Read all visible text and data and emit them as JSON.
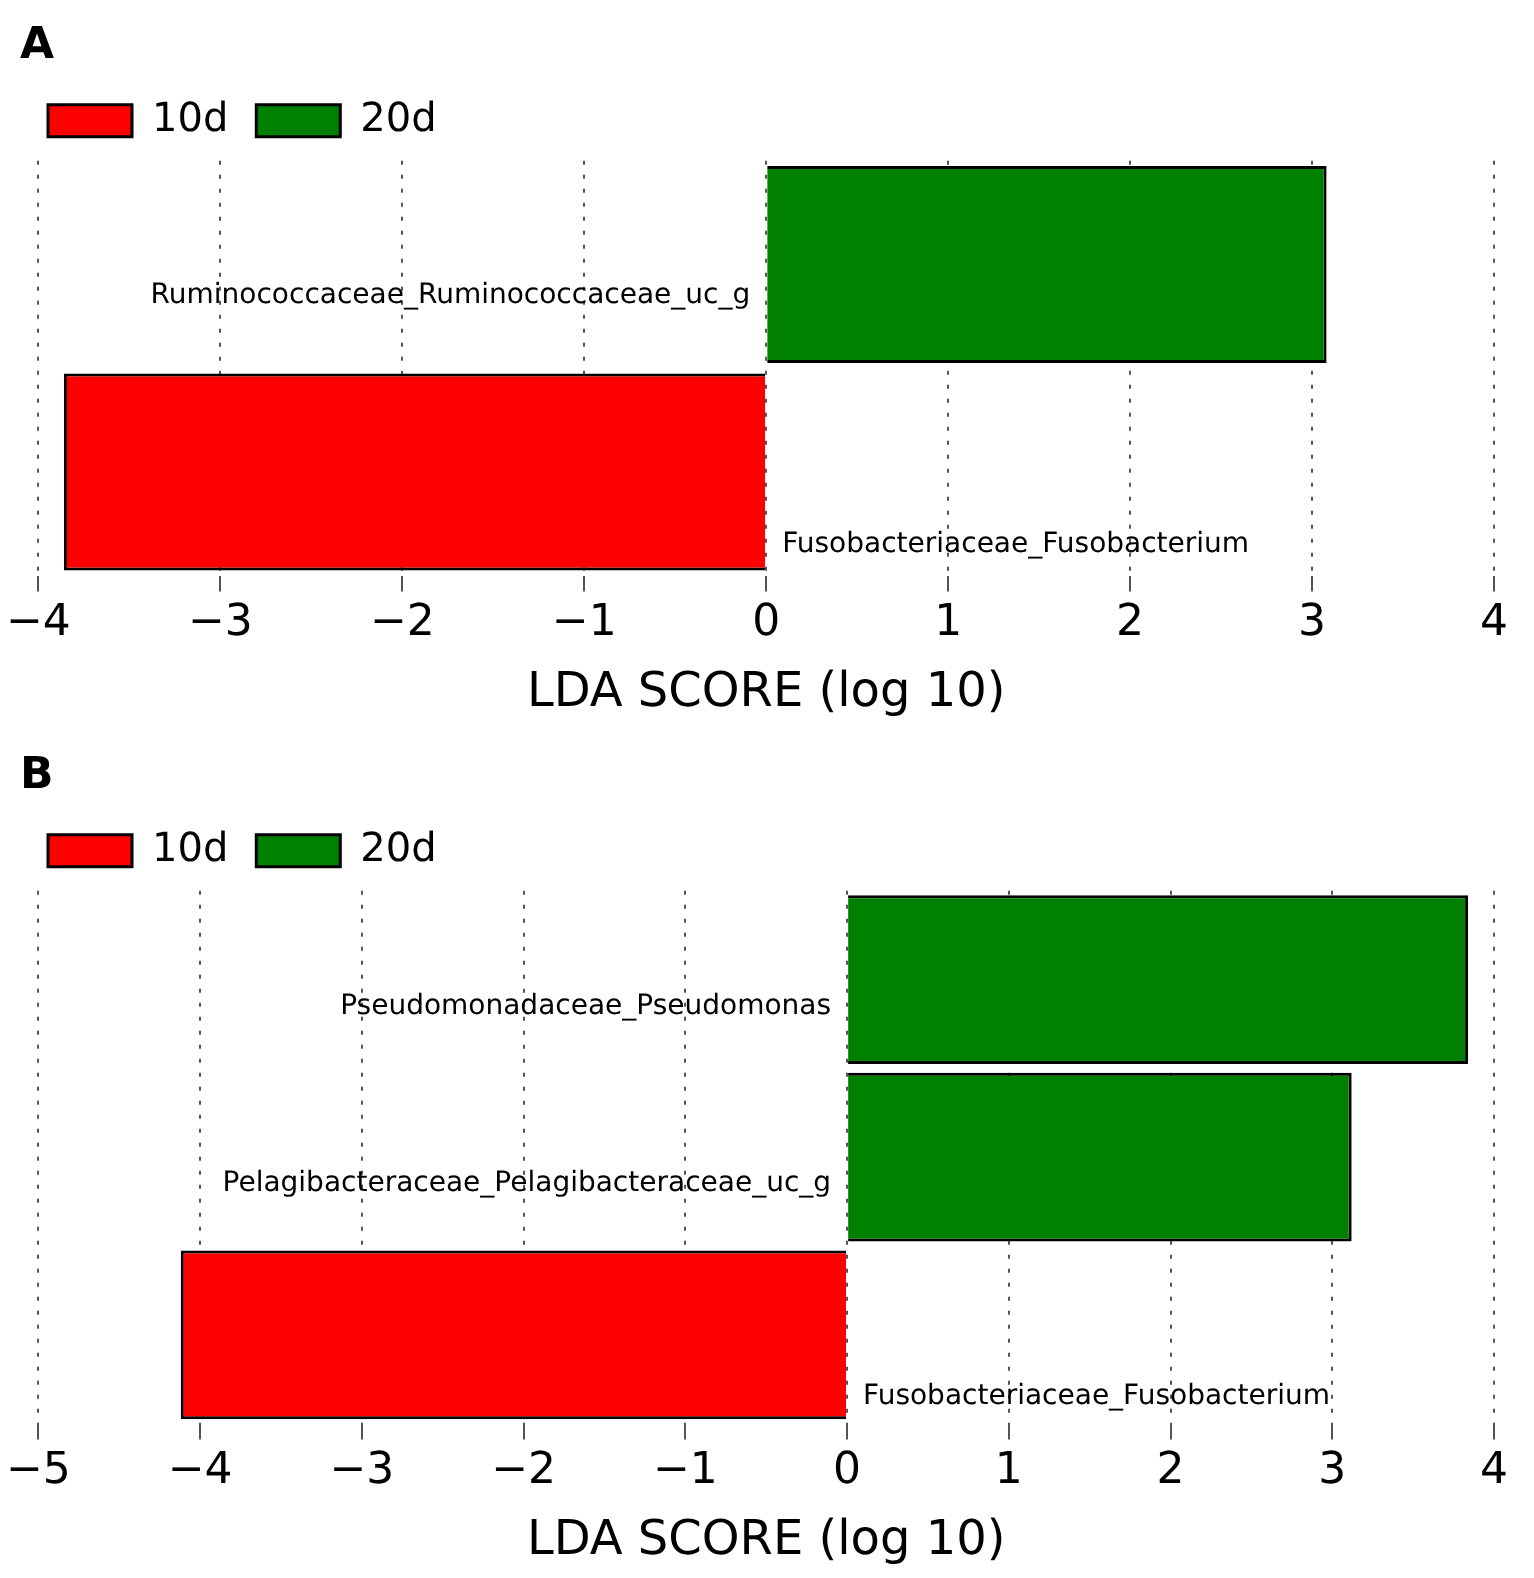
{
  "chart_data": [
    {
      "type": "bar",
      "title": "A",
      "orientation": "horizontal",
      "categories": [
        "Ruminococcaceae_Ruminococcaceae_uc_g",
        "Fusobacteriaceae_Fusobacterium"
      ],
      "series": [
        {
          "name": "10d",
          "color": "#ff0000",
          "values": [
            null,
            -3.86
          ]
        },
        {
          "name": "20d",
          "color": "#008000",
          "values": [
            3.08,
            null
          ]
        }
      ],
      "xlabel": "LDA SCORE (log 10)",
      "xlim": [
        -4,
        4
      ],
      "xticks": [
        -4,
        -3,
        -2,
        -1,
        0,
        1,
        2,
        3,
        4
      ],
      "grid": "x",
      "legend": "top left",
      "tick_labels": "x"
    },
    {
      "type": "bar",
      "title": "B",
      "orientation": "horizontal",
      "categories": [
        "Pseudomonadaceae_Pseudomonas",
        "Pelagibacteraceae_Pelagibacteraceae_uc_g",
        "Fusobacteriaceae_Fusobacterium"
      ],
      "series": [
        {
          "name": "10d",
          "color": "#ff0000",
          "values": [
            null,
            null,
            -4.12
          ]
        },
        {
          "name": "20d",
          "color": "#008000",
          "values": [
            3.84,
            3.12,
            null
          ]
        }
      ],
      "xlabel": "LDA SCORE (log 10)",
      "xlim": [
        -5,
        4
      ],
      "xticks": [
        -5,
        -4,
        -3,
        -2,
        -1,
        0,
        1,
        2,
        3,
        4
      ],
      "grid": "x",
      "legend": "top left",
      "tick_labels": "x"
    }
  ]
}
